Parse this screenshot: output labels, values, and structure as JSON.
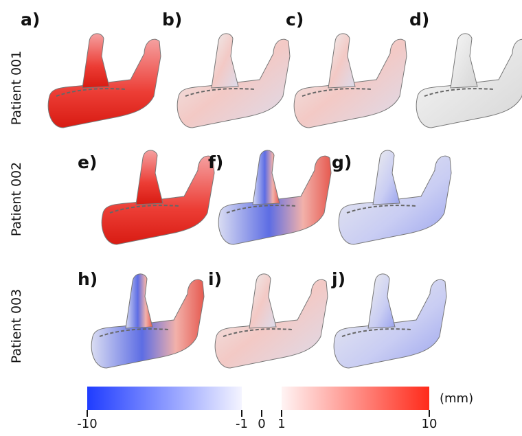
{
  "panels": [
    {
      "label": "a)"
    },
    {
      "label": "b)"
    },
    {
      "label": "c)"
    },
    {
      "label": "d)"
    },
    {
      "label": "e)"
    },
    {
      "label": "f)"
    },
    {
      "label": "g)"
    },
    {
      "label": "h)"
    },
    {
      "label": "i)"
    },
    {
      "label": "j)"
    }
  ],
  "rows": [
    {
      "label": "Patient 001"
    },
    {
      "label": "Patient 002"
    },
    {
      "label": "Patient 003"
    }
  ],
  "colorbar": {
    "unit": "(mm)",
    "ticks": [
      -10,
      -1,
      0,
      1,
      10
    ]
  }
}
